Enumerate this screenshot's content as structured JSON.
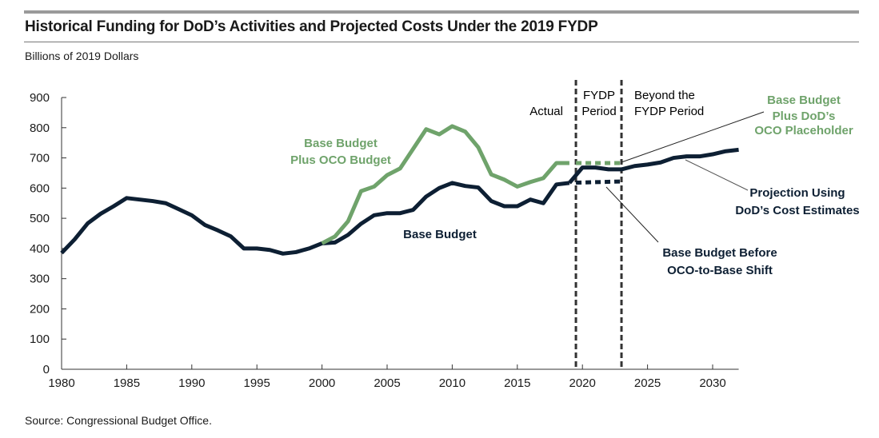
{
  "chart_data": {
    "type": "line",
    "title": "Historical Funding for DoD’s Activities and Projected Costs Under the 2019 FYDP",
    "ylabel": "Billions of 2019 Dollars",
    "source": "Source: Congressional Budget Office.",
    "xlim": [
      1980,
      2032
    ],
    "ylim": [
      0,
      900
    ],
    "xticks": [
      1980,
      1985,
      1990,
      1995,
      2000,
      2005,
      2010,
      2015,
      2020,
      2025,
      2030
    ],
    "yticks": [
      0,
      100,
      200,
      300,
      400,
      500,
      600,
      700,
      800,
      900
    ],
    "grid": false,
    "colors": {
      "base": "#0d1f33",
      "oco": "#6fa36b",
      "divider": "#333333"
    },
    "dividers": [
      2019.5,
      2023
    ],
    "periods": {
      "actual": "Actual",
      "fydp": "FYDP\nPeriod",
      "beyond": "Beyond the\nFYDP Period"
    },
    "series": [
      {
        "name": "Base Budget",
        "style": "solid",
        "color": "#0d1f33",
        "x": [
          1980,
          1981,
          1982,
          1983,
          1984,
          1985,
          1986,
          1987,
          1988,
          1989,
          1990,
          1991,
          1992,
          1993,
          1994,
          1995,
          1996,
          1997,
          1998,
          1999,
          2000,
          2001,
          2002,
          2003,
          2004,
          2005,
          2006,
          2007,
          2008,
          2009,
          2010,
          2011,
          2012,
          2013,
          2014,
          2015,
          2016,
          2017,
          2018,
          2019
        ],
        "y": [
          385,
          430,
          483,
          515,
          540,
          567,
          562,
          557,
          550,
          530,
          510,
          478,
          460,
          440,
          400,
          400,
          395,
          383,
          388,
          400,
          417,
          420,
          445,
          482,
          510,
          517,
          517,
          528,
          572,
          600,
          617,
          607,
          602,
          557,
          540,
          540,
          562,
          550,
          612,
          617
        ]
      },
      {
        "name": "Base Budget Plus OCO Budget",
        "style": "solid",
        "color": "#6fa36b",
        "x": [
          2000,
          2001,
          2002,
          2003,
          2004,
          2005,
          2006,
          2007,
          2008,
          2009,
          2010,
          2011,
          2012,
          2013,
          2014,
          2015,
          2016,
          2017,
          2018,
          2019
        ],
        "y": [
          417,
          440,
          490,
          590,
          605,
          643,
          665,
          730,
          795,
          778,
          805,
          787,
          735,
          645,
          628,
          605,
          620,
          633,
          683,
          683
        ]
      },
      {
        "name": "Projection Using DoD’s Cost Estimates",
        "style": "solid",
        "color": "#0d1f33",
        "x": [
          2019,
          2020,
          2021,
          2022,
          2023,
          2024,
          2025,
          2026,
          2027,
          2028,
          2029,
          2030,
          2031,
          2032
        ],
        "y": [
          617,
          668,
          668,
          662,
          662,
          673,
          678,
          685,
          700,
          705,
          705,
          712,
          722,
          727
        ]
      },
      {
        "name": "Base Budget Plus DoD’s OCO Placeholder",
        "style": "dotted",
        "color": "#6fa36b",
        "x": [
          2019.5,
          2023
        ],
        "y": [
          683,
          683
        ]
      },
      {
        "name": "Base Budget Before OCO-to-Base Shift",
        "style": "dotted",
        "color": "#0d1f33",
        "x": [
          2019.5,
          2023
        ],
        "y": [
          618,
          622
        ]
      }
    ],
    "annotations": {
      "base": "Base Budget",
      "oco_l1": "Base Budget",
      "oco_l2": "Plus OCO Budget",
      "placeholder_l1": "Base Budget",
      "placeholder_l2": "Plus DoD’s",
      "placeholder_l3": "OCO Placeholder",
      "projection_l1": "Projection Using",
      "projection_l2": "DoD’s Cost Estimates",
      "before_l1": "Base Budget Before",
      "before_l2": "OCO-to-Base Shift"
    }
  }
}
